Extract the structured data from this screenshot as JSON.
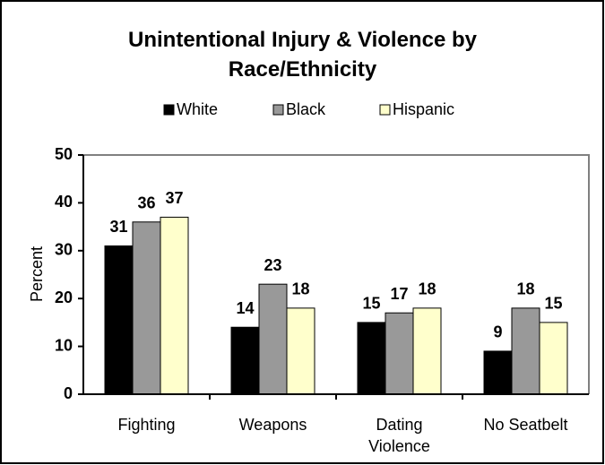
{
  "chart_data": {
    "type": "bar",
    "title": "Unintentional Injury & Violence by Race/Ethnicity",
    "categories": [
      "Fighting",
      "Weapons",
      "Dating Violence",
      "No Seatbelt"
    ],
    "series": [
      {
        "name": "White",
        "color": "#000000",
        "values": [
          31,
          14,
          15,
          9
        ]
      },
      {
        "name": "Black",
        "color": "#999999",
        "values": [
          36,
          23,
          17,
          18
        ]
      },
      {
        "name": "Hispanic",
        "color": "#ffffcc",
        "values": [
          37,
          18,
          18,
          15
        ]
      }
    ],
    "y_label": "Percent",
    "ylim": [
      0,
      50
    ],
    "yticks": [
      0,
      10,
      20,
      30,
      40,
      50
    ],
    "grid": false,
    "legend": "top"
  }
}
